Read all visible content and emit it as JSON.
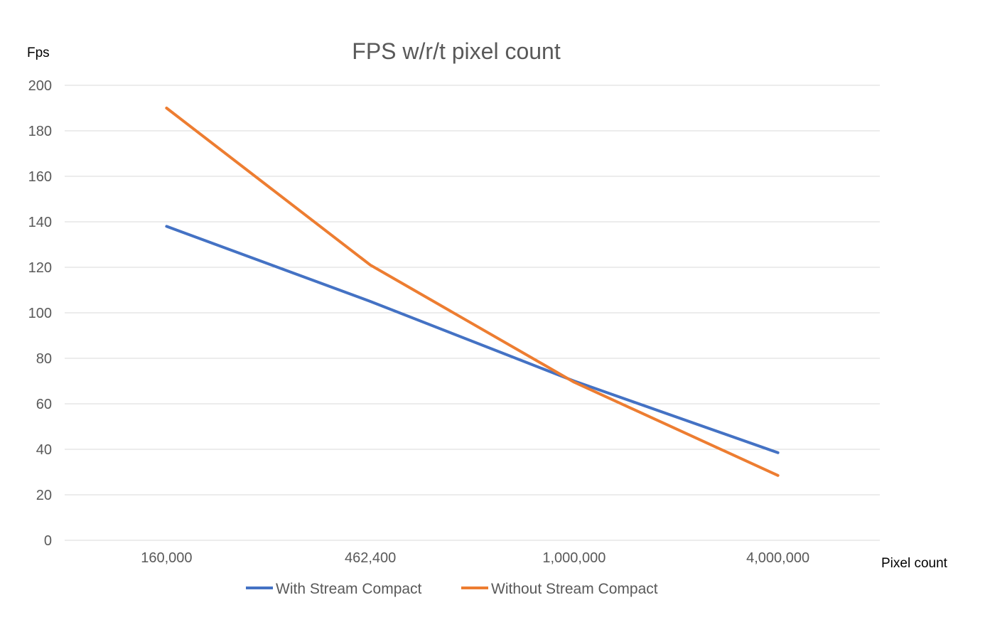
{
  "chart_data": {
    "type": "line",
    "title": "FPS w/r/t pixel count",
    "xlabel": "Pixel count",
    "ylabel": "Fps",
    "categories": [
      "160,000",
      "462,400",
      "1,000,000",
      "4,000,000"
    ],
    "ylim": [
      0,
      200
    ],
    "yticks": [
      0,
      20,
      40,
      60,
      80,
      100,
      120,
      140,
      160,
      180,
      200
    ],
    "grid": true,
    "legend_position": "bottom",
    "series": [
      {
        "name": "With Stream Compact",
        "color": "#4472c4",
        "values": [
          138,
          105,
          70,
          38.5
        ]
      },
      {
        "name": "Without Stream Compact",
        "color": "#ed7d31",
        "values": [
          190,
          121,
          69.5,
          28.5
        ]
      }
    ]
  }
}
